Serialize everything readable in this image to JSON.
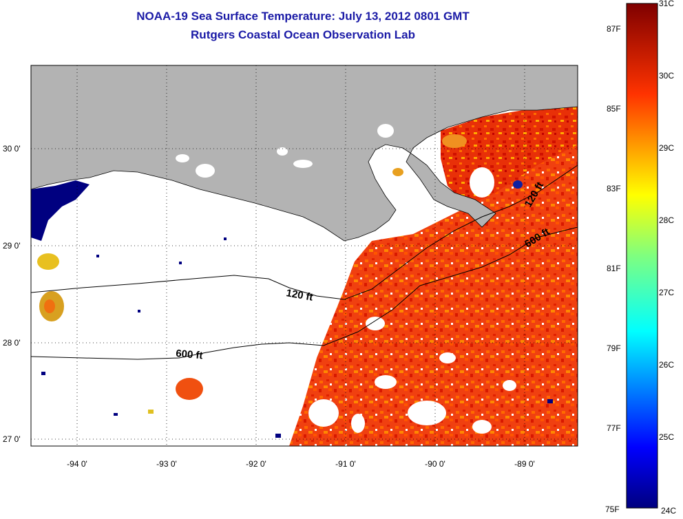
{
  "title": "NOAA-19 Sea Surface Temperature:  July 13, 2012 0801 GMT",
  "subtitle": "Rutgers Coastal Ocean Observation Lab",
  "map": {
    "x_ticks": [
      {
        "value": -94,
        "label": "-94 0'"
      },
      {
        "value": -93,
        "label": "-93 0'"
      },
      {
        "value": -92,
        "label": "-92 0'"
      },
      {
        "value": -91,
        "label": "-91 0'"
      },
      {
        "value": -90,
        "label": "-90 0'"
      },
      {
        "value": -89,
        "label": "-89 0'"
      }
    ],
    "y_ticks": [
      {
        "value": 30,
        "label": "30 0'"
      },
      {
        "value": 29,
        "label": "29 0'"
      },
      {
        "value": 28,
        "label": "28 0'"
      },
      {
        "value": 27,
        "label": "27 0'"
      }
    ],
    "lon_range": [
      -94.5,
      -88.3
    ],
    "lat_range": [
      26.95,
      30.88
    ],
    "contour_labels": [
      "120 ft",
      "600 ft",
      "120 ft",
      "600 ft"
    ],
    "colors": {
      "land": "#b3b3b3",
      "cloud": "#ffffff",
      "contour": "#000000",
      "grid": "#000000"
    }
  },
  "colorbar": {
    "celsius": [
      "31C",
      "30C",
      "29C",
      "28C",
      "27C",
      "26C",
      "25C",
      "24C"
    ],
    "fahrenheit": [
      "87F",
      "85F",
      "83F",
      "81F",
      "79F",
      "77F",
      "75F"
    ],
    "celsius_values": [
      31,
      30,
      29,
      28,
      27,
      26,
      25,
      24
    ],
    "fahrenheit_values": [
      87,
      85,
      83,
      81,
      79,
      77,
      75
    ],
    "range_c": [
      24,
      31
    ]
  }
}
